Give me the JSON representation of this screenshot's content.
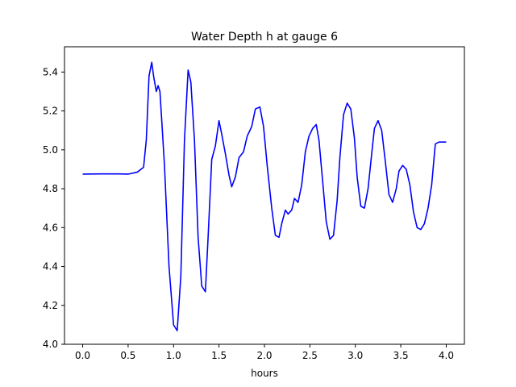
{
  "chart_data": {
    "type": "line",
    "title": "Water Depth h at gauge 6",
    "xlabel": "hours",
    "ylabel": "",
    "xlim": [
      -0.2,
      4.2
    ],
    "ylim": [
      4.0,
      5.53
    ],
    "xticks": [
      0.0,
      0.5,
      1.0,
      1.5,
      2.0,
      2.5,
      3.0,
      3.5,
      4.0
    ],
    "xtick_labels": [
      "0.0",
      "0.5",
      "1.0",
      "1.5",
      "2.0",
      "2.5",
      "3.0",
      "3.5",
      "4.0"
    ],
    "yticks": [
      4.0,
      4.2,
      4.4,
      4.6,
      4.8,
      5.0,
      5.2,
      5.4
    ],
    "ytick_labels": [
      "4.0",
      "4.2",
      "4.4",
      "4.6",
      "4.8",
      "5.0",
      "5.2",
      "5.4"
    ],
    "grid": false,
    "series": [
      {
        "color": "#0000ff",
        "x": [
          0.0,
          0.2,
          0.4,
          0.5,
          0.6,
          0.67,
          0.7,
          0.73,
          0.76,
          0.78,
          0.81,
          0.83,
          0.85,
          0.87,
          0.9,
          0.95,
          1.0,
          1.04,
          1.08,
          1.12,
          1.16,
          1.19,
          1.23,
          1.27,
          1.31,
          1.35,
          1.38,
          1.42,
          1.46,
          1.5,
          1.53,
          1.57,
          1.61,
          1.64,
          1.68,
          1.72,
          1.77,
          1.81,
          1.86,
          1.9,
          1.95,
          1.99,
          2.03,
          2.08,
          2.12,
          2.16,
          2.19,
          2.23,
          2.26,
          2.3,
          2.33,
          2.37,
          2.41,
          2.45,
          2.49,
          2.53,
          2.57,
          2.6,
          2.64,
          2.68,
          2.72,
          2.76,
          2.8,
          2.83,
          2.87,
          2.91,
          2.95,
          2.99,
          3.02,
          3.06,
          3.1,
          3.14,
          3.18,
          3.21,
          3.25,
          3.29,
          3.33,
          3.37,
          3.41,
          3.45,
          3.48,
          3.52,
          3.56,
          3.6,
          3.64,
          3.68,
          3.72,
          3.76,
          3.8,
          3.84,
          3.88,
          3.92,
          3.96,
          4.0
        ],
        "y": [
          4.875,
          4.876,
          4.876,
          4.875,
          4.885,
          4.91,
          5.05,
          5.38,
          5.45,
          5.38,
          5.3,
          5.33,
          5.3,
          5.15,
          4.92,
          4.4,
          4.1,
          4.07,
          4.35,
          5.05,
          5.41,
          5.35,
          5.05,
          4.55,
          4.3,
          4.27,
          4.55,
          4.95,
          5.02,
          5.15,
          5.08,
          4.98,
          4.87,
          4.81,
          4.86,
          4.96,
          4.99,
          5.07,
          5.12,
          5.21,
          5.22,
          5.12,
          4.92,
          4.7,
          4.56,
          4.55,
          4.62,
          4.69,
          4.67,
          4.69,
          4.75,
          4.73,
          4.82,
          4.99,
          5.07,
          5.11,
          5.13,
          5.05,
          4.84,
          4.63,
          4.54,
          4.56,
          4.74,
          4.96,
          5.18,
          5.24,
          5.21,
          5.06,
          4.86,
          4.71,
          4.7,
          4.8,
          4.98,
          5.11,
          5.15,
          5.1,
          4.94,
          4.77,
          4.73,
          4.8,
          4.89,
          4.92,
          4.9,
          4.82,
          4.68,
          4.6,
          4.59,
          4.62,
          4.7,
          4.82,
          5.03,
          5.04,
          5.04,
          5.04
        ]
      }
    ]
  }
}
